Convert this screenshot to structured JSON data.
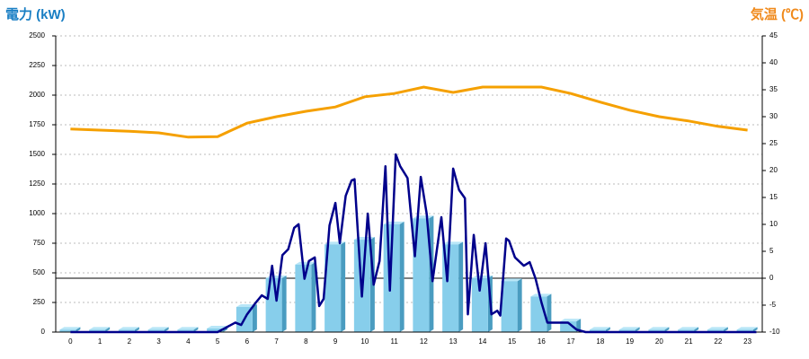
{
  "chart_data": {
    "type": "bar",
    "title": "電力 (kW)",
    "y2_title": "気温 (℃)",
    "categories": [
      "0",
      "1",
      "2",
      "3",
      "4",
      "5",
      "6",
      "7",
      "8",
      "9",
      "10",
      "11",
      "12",
      "13",
      "14",
      "15",
      "16",
      "17",
      "18",
      "19",
      "20",
      "21",
      "22",
      "23"
    ],
    "values": [
      20,
      20,
      20,
      20,
      20,
      30,
      212,
      455,
      570,
      740,
      780,
      910,
      960,
      740,
      455,
      430,
      300,
      90,
      20,
      20,
      20,
      20,
      20,
      20
    ],
    "color": "#87ceeb",
    "power_line": {
      "color": "#00008b",
      "x": [
        0,
        5,
        5.3,
        5.6,
        5.8,
        6,
        6.3,
        6.5,
        6.7,
        6.85,
        7,
        7.2,
        7.4,
        7.6,
        7.75,
        7.95,
        8.1,
        8.3,
        8.45,
        8.6,
        8.8,
        9,
        9.15,
        9.35,
        9.55,
        9.65,
        9.9,
        10.1,
        10.3,
        10.5,
        10.7,
        10.85,
        11.05,
        11.2,
        11.45,
        11.7,
        11.9,
        12.1,
        12.3,
        12.6,
        12.8,
        13,
        13.2,
        13.4,
        13.5,
        13.7,
        13.9,
        14.1,
        14.3,
        14.5,
        14.6,
        14.8,
        14.9,
        15.1,
        15.4,
        15.6,
        15.8,
        16,
        16.2,
        16.9,
        17.2,
        17.5,
        23.3
      ],
      "values": [
        0,
        0,
        40,
        80,
        60,
        150,
        250,
        310,
        280,
        560,
        265,
        650,
        700,
        880,
        910,
        450,
        600,
        630,
        220,
        280,
        900,
        1090,
        750,
        1150,
        1280,
        1290,
        300,
        1000,
        400,
        600,
        1400,
        350,
        1500,
        1400,
        1300,
        640,
        1310,
        1000,
        430,
        970,
        430,
        1380,
        1200,
        1130,
        150,
        820,
        350,
        750,
        150,
        180,
        140,
        790,
        770,
        630,
        560,
        590,
        450,
        250,
        80,
        80,
        20,
        0,
        0
      ]
    },
    "temperature": {
      "color": "#f5a000",
      "axis": "y2",
      "values": [
        27.7,
        27.5,
        27.3,
        27,
        26.2,
        26.3,
        28.8,
        30,
        31,
        31.8,
        33.7,
        34.3,
        35.5,
        34.5,
        35.5,
        35.5,
        35.5,
        34.3,
        32.7,
        31.2,
        30,
        29.2,
        28.2,
        27.5
      ]
    },
    "ylim": [
      0,
      2500
    ],
    "yticks": [
      0,
      250,
      500,
      750,
      1000,
      1250,
      1500,
      1750,
      2000,
      2250,
      2500
    ],
    "y2lim": [
      -10,
      45
    ],
    "y2ticks": [
      -10,
      -5,
      0,
      5,
      10,
      15,
      20,
      25,
      30,
      35,
      40,
      45
    ],
    "grid": true
  }
}
